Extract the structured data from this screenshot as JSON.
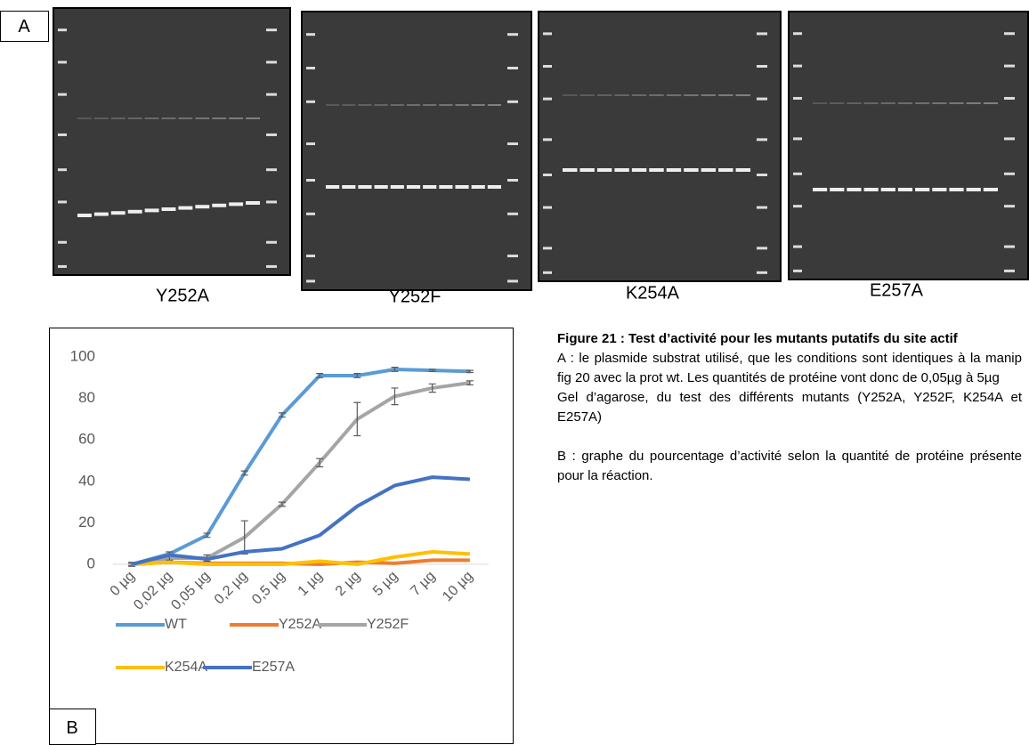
{
  "panel_a_label": "A",
  "panel_b_label": "B",
  "gels": [
    {
      "label": "Y252A"
    },
    {
      "label": "Y252F"
    },
    {
      "label": "K254A"
    },
    {
      "label": "E257A"
    }
  ],
  "chart_data": {
    "type": "line",
    "categories": [
      "0 µg",
      "0,02 µg",
      "0,05 µg",
      "0,2 µg",
      "0,5 µg",
      "1 µg",
      "2 µg",
      "5 µg",
      "7 µg",
      "10 µg"
    ],
    "ylim": [
      0,
      100
    ],
    "yticks": [
      0,
      20,
      40,
      60,
      80,
      100
    ],
    "grid": false,
    "legend": "bottom",
    "series": [
      {
        "name": "WT",
        "color": "#5b9bd5",
        "values": [
          0,
          5,
          14,
          44,
          72,
          91,
          91,
          94,
          93.5,
          93
        ],
        "errors": [
          1,
          1,
          1,
          1,
          1,
          1,
          1,
          1,
          0.5,
          0.5
        ]
      },
      {
        "name": "Y252A",
        "color": "#ed7d31",
        "values": [
          0,
          1,
          0.5,
          0.5,
          0.5,
          0,
          1,
          0.5,
          2,
          2
        ]
      },
      {
        "name": "Y252F",
        "color": "#a5a5a5",
        "values": [
          0,
          3,
          3,
          13,
          29,
          49,
          70,
          81,
          85,
          87.5
        ],
        "errors": [
          0.5,
          1,
          1.5,
          8,
          1,
          2,
          8,
          4,
          2,
          1
        ]
      },
      {
        "name": "K254A",
        "color": "#ffc000",
        "values": [
          0,
          1,
          0,
          0,
          0,
          1.5,
          0,
          3.5,
          6,
          5
        ]
      },
      {
        "name": "E257A",
        "color": "#4472c4",
        "values": [
          0,
          4.5,
          2.5,
          6,
          7.5,
          14,
          28,
          38,
          42,
          41
        ]
      }
    ]
  },
  "caption": {
    "title": "Figure 21 : Test d’activité pour les mutants putatifs du site actif",
    "paragraphs": [
      "A : le plasmide substrat utilisé, que les conditions sont identiques à la manip fig 20 avec la prot wt. Les quantités de protéine vont donc de 0,05µg à 5µg",
      "Gel d’agarose, du test des différents mutants (Y252A, Y252F, K254A et E257A)",
      "B : graphe du pourcentage d’activité selon la quantité de protéine présente pour la réaction."
    ]
  }
}
